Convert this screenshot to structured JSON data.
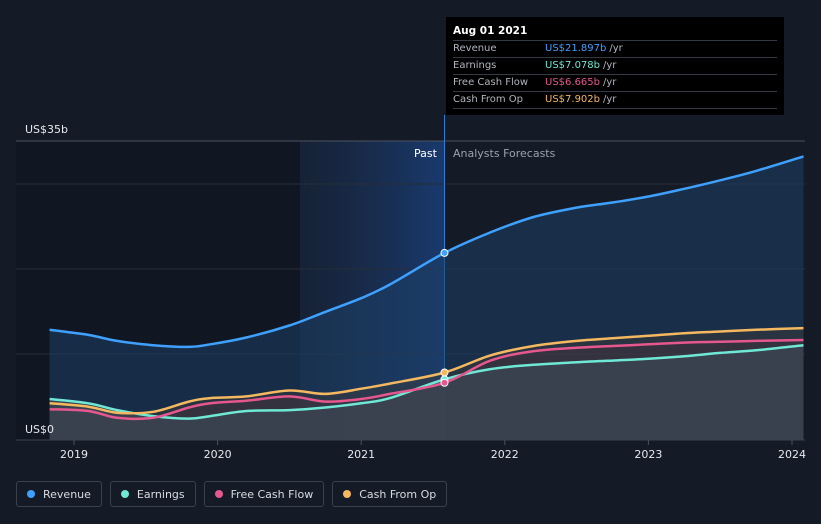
{
  "tooltip": {
    "date": "Aug 01 2021",
    "rows": [
      {
        "label": "Revenue",
        "value": "US$21.897b",
        "unit": "/yr",
        "color": "#3fa1ff"
      },
      {
        "label": "Earnings",
        "value": "US$7.078b",
        "unit": "/yr",
        "color": "#6fe8d5"
      },
      {
        "label": "Free Cash Flow",
        "value": "US$6.665b",
        "unit": "/yr",
        "color": "#e6578e"
      },
      {
        "label": "Cash From Op",
        "value": "US$7.902b",
        "unit": "/yr",
        "color": "#f4b860"
      }
    ]
  },
  "regions": {
    "past": "Past",
    "forecast": "Analysts Forecasts"
  },
  "chart_data": {
    "type": "line",
    "y_top_label": "US$35b",
    "y_bottom_label": "US$0",
    "ylim": [
      0,
      35
    ],
    "x_ticks": [
      "2019",
      "2020",
      "2021",
      "2022",
      "2023",
      "2024"
    ],
    "past_end": "2021.58",
    "series": [
      {
        "name": "Revenue",
        "color": "#3fa1ff",
        "x": [
          2018.83,
          2019.1,
          2019.3,
          2019.55,
          2019.8,
          2019.95,
          2020.2,
          2020.5,
          2020.75,
          2021.0,
          2021.2,
          2021.58,
          2021.9,
          2022.2,
          2022.5,
          2022.75,
          2023.0,
          2023.25,
          2023.5,
          2023.75,
          2024.08
        ],
        "y": [
          12.9,
          12.3,
          11.6,
          11.1,
          10.9,
          11.2,
          12.0,
          13.4,
          15.0,
          16.6,
          18.2,
          21.9,
          24.3,
          26.1,
          27.2,
          27.8,
          28.5,
          29.4,
          30.4,
          31.5,
          33.2
        ]
      },
      {
        "name": "Earnings",
        "color": "#6fe8d5",
        "x": [
          2018.83,
          2019.1,
          2019.3,
          2019.55,
          2019.8,
          2019.95,
          2020.2,
          2020.5,
          2020.75,
          2021.0,
          2021.2,
          2021.58,
          2021.9,
          2022.2,
          2022.5,
          2022.75,
          2023.0,
          2023.25,
          2023.5,
          2023.75,
          2024.08
        ],
        "y": [
          4.8,
          4.3,
          3.5,
          2.8,
          2.5,
          2.8,
          3.4,
          3.5,
          3.8,
          4.3,
          4.9,
          7.1,
          8.3,
          8.8,
          9.1,
          9.3,
          9.5,
          9.8,
          10.2,
          10.5,
          11.1
        ]
      },
      {
        "name": "Free Cash Flow",
        "color": "#e6578e",
        "x": [
          2018.83,
          2019.1,
          2019.3,
          2019.55,
          2019.8,
          2019.95,
          2020.2,
          2020.5,
          2020.75,
          2021.0,
          2021.2,
          2021.58,
          2021.9,
          2022.2,
          2022.5,
          2022.75,
          2023.0,
          2023.25,
          2023.5,
          2023.75,
          2024.08
        ],
        "y": [
          3.6,
          3.4,
          2.6,
          2.6,
          3.8,
          4.3,
          4.6,
          5.1,
          4.5,
          4.8,
          5.4,
          6.7,
          9.3,
          10.4,
          10.8,
          11.0,
          11.2,
          11.4,
          11.5,
          11.6,
          11.7
        ]
      },
      {
        "name": "Cash From Op",
        "color": "#f4b860",
        "x": [
          2018.83,
          2019.1,
          2019.3,
          2019.55,
          2019.8,
          2019.95,
          2020.2,
          2020.5,
          2020.75,
          2021.0,
          2021.2,
          2021.58,
          2021.9,
          2022.2,
          2022.5,
          2022.75,
          2023.0,
          2023.25,
          2023.5,
          2023.75,
          2024.08
        ],
        "y": [
          4.3,
          3.9,
          3.2,
          3.3,
          4.5,
          4.9,
          5.1,
          5.8,
          5.4,
          6.0,
          6.6,
          7.9,
          9.9,
          11.0,
          11.6,
          11.9,
          12.2,
          12.5,
          12.7,
          12.9,
          13.1
        ]
      }
    ]
  },
  "legend": [
    "Revenue",
    "Earnings",
    "Free Cash Flow",
    "Cash From Op"
  ]
}
